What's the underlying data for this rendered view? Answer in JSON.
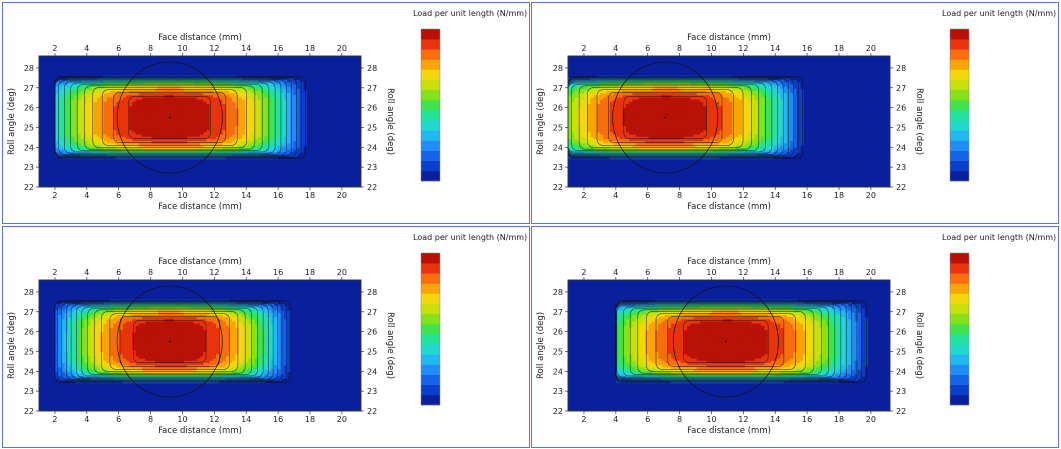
{
  "chart_data": [
    {
      "type": "heatmap",
      "xlabel": "Face distance (mm)",
      "ylabel": "Roll angle (deg)",
      "legend_title": "Load per unit length (N/mm)",
      "x_ticks": [
        "2",
        "4",
        "6",
        "8",
        "10",
        "12",
        "14",
        "16",
        "18",
        "20"
      ],
      "y_ticks": [
        "22",
        "23",
        "24",
        "25",
        "26",
        "27",
        "28"
      ],
      "xlim": [
        1,
        21.2
      ],
      "ylim": [
        22,
        28.6
      ],
      "contact_zone_x": [
        2,
        18
      ],
      "peak_center": {
        "x": 9.2,
        "y": 25.5
      },
      "colorbar_levels": 15,
      "legend_position": "right"
    },
    {
      "type": "heatmap",
      "xlabel": "Face distance (mm)",
      "ylabel": "Roll angle (deg)",
      "legend_title": "Load per unit length (N/mm)",
      "x_ticks": [
        "2",
        "4",
        "6",
        "8",
        "10",
        "12",
        "14",
        "16",
        "18",
        "20"
      ],
      "y_ticks": [
        "22",
        "23",
        "24",
        "25",
        "26",
        "27",
        "28"
      ],
      "xlim": [
        1,
        21.2
      ],
      "ylim": [
        22,
        28.6
      ],
      "contact_zone_x": [
        1,
        16
      ],
      "peak_center": {
        "x": 7.1,
        "y": 25.5
      },
      "colorbar_levels": 15,
      "legend_position": "right"
    },
    {
      "type": "heatmap",
      "xlabel": "Face distance (mm)",
      "ylabel": "Roll angle (deg)",
      "legend_title": "Load per unit length (N/mm)",
      "x_ticks": [
        "2",
        "4",
        "6",
        "8",
        "10",
        "12",
        "14",
        "16",
        "18",
        "20"
      ],
      "y_ticks": [
        "22",
        "23",
        "24",
        "25",
        "26",
        "27",
        "28"
      ],
      "xlim": [
        1,
        21.2
      ],
      "ylim": [
        22,
        28.6
      ],
      "contact_zone_x": [
        2,
        17
      ],
      "peak_center": {
        "x": 9.2,
        "y": 25.5
      },
      "colorbar_levels": 15,
      "legend_position": "right"
    },
    {
      "type": "heatmap",
      "xlabel": "Face distance (mm)",
      "ylabel": "Roll angle (deg)",
      "legend_title": "Load per unit length (N/mm)",
      "x_ticks": [
        "2",
        "4",
        "6",
        "8",
        "10",
        "12",
        "14",
        "16",
        "18",
        "20"
      ],
      "y_ticks": [
        "22",
        "23",
        "24",
        "25",
        "26",
        "27",
        "28"
      ],
      "xlim": [
        1,
        21.2
      ],
      "ylim": [
        22,
        28.6
      ],
      "contact_zone_x": [
        4,
        20
      ],
      "peak_center": {
        "x": 10.9,
        "y": 25.5
      },
      "colorbar_levels": 15,
      "legend_position": "right"
    }
  ],
  "colors": [
    "#0a1f9c",
    "#0b3fc8",
    "#1565e8",
    "#1f8ef5",
    "#22b8f0",
    "#21d8d0",
    "#23e29a",
    "#3fe34e",
    "#85e31c",
    "#c8e00d",
    "#f2d80a",
    "#fba40a",
    "#f86e0c",
    "#e8340c",
    "#b81208"
  ]
}
